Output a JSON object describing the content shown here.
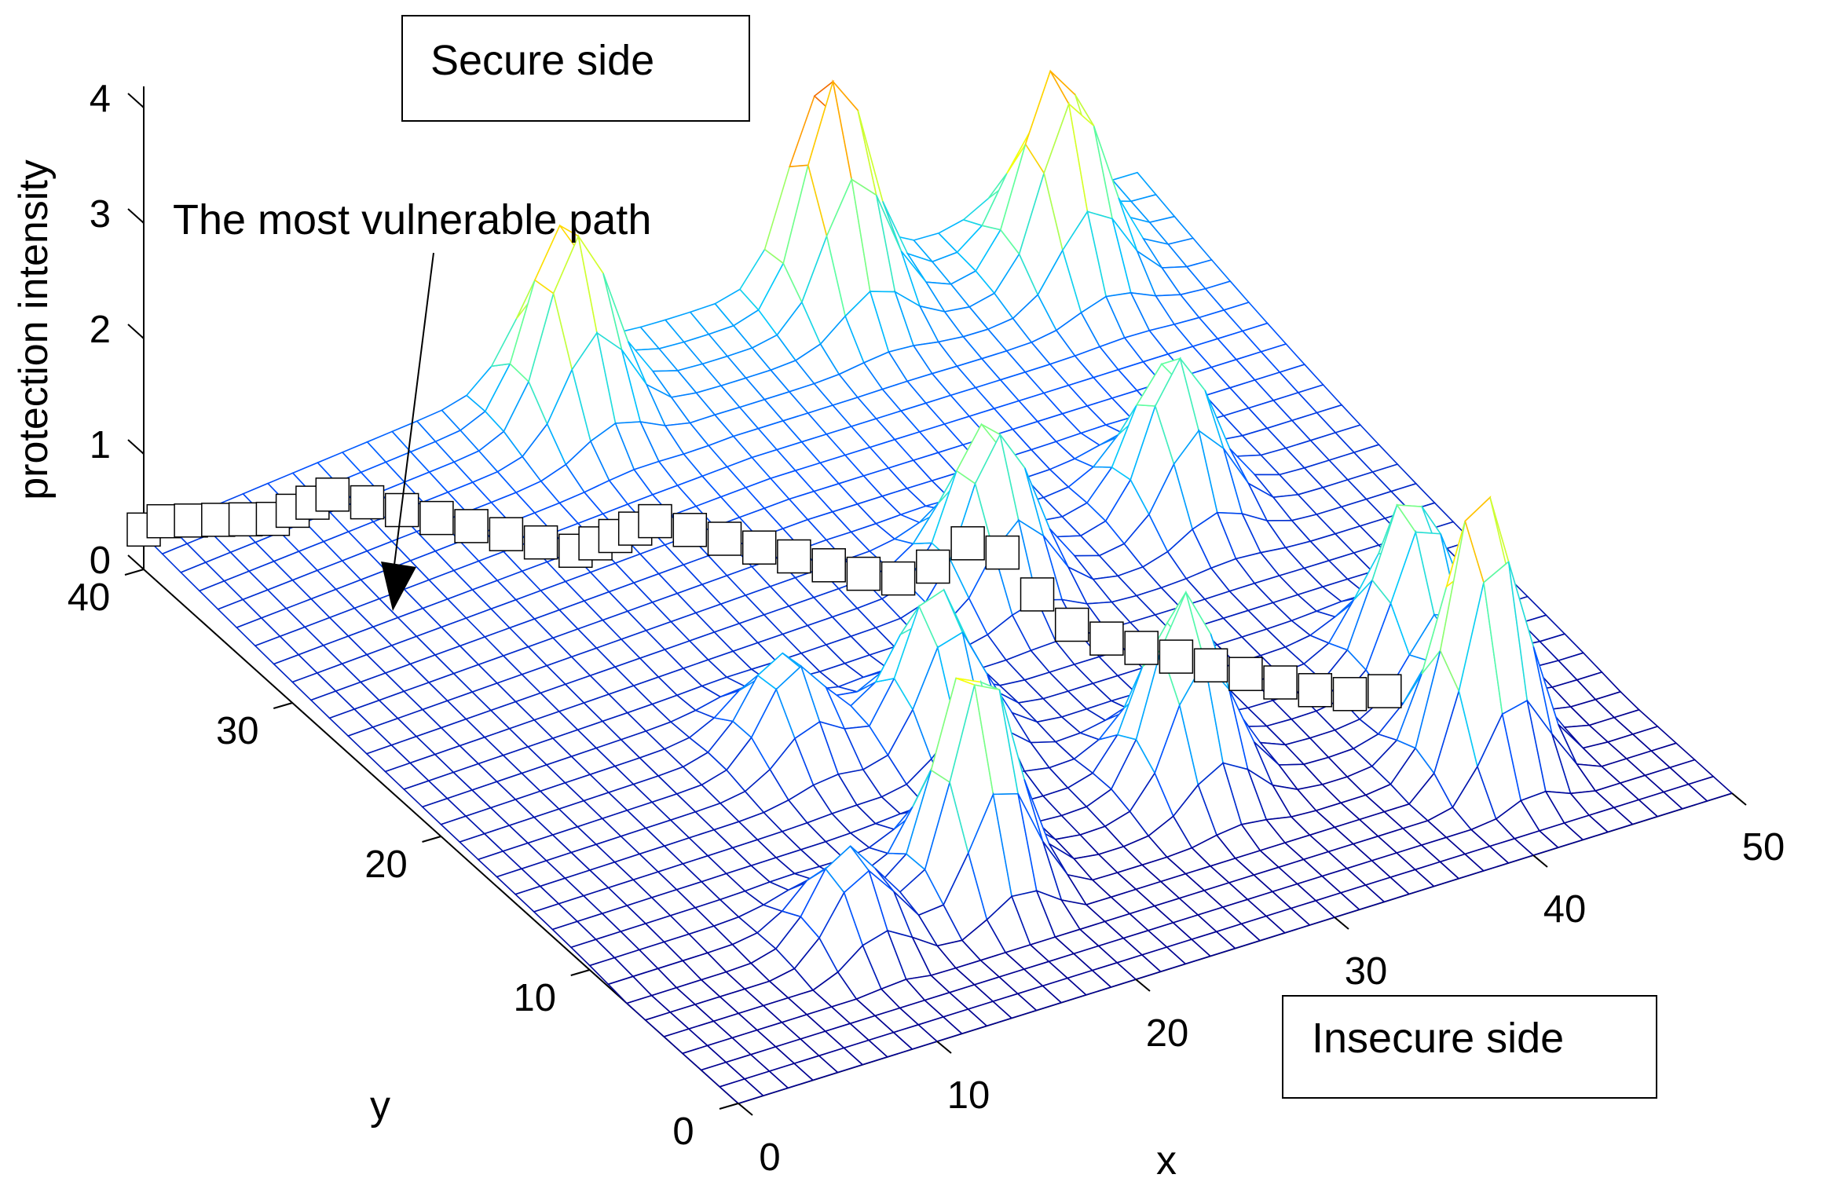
{
  "chart_data": {
    "type": "surface",
    "zlabel": "protection intensity",
    "xlabel": "x",
    "ylabel": "y",
    "xlim": [
      0,
      50
    ],
    "ylim": [
      0,
      40
    ],
    "zlim": [
      0,
      4
    ],
    "x_ticks": [
      "0",
      "10",
      "20",
      "30",
      "40",
      "50"
    ],
    "y_ticks": [
      "0",
      "10",
      "20",
      "30",
      "40"
    ],
    "z_ticks": [
      "0",
      "1",
      "2",
      "3",
      "4"
    ],
    "grid": false,
    "colormap": [
      "#000090",
      "#0050ff",
      "#00c8ff",
      "#60ff9f",
      "#ffff00",
      "#ff9000",
      "#d00000"
    ],
    "annotations": {
      "secure_side": "Secure side",
      "insecure_side": "Insecure side",
      "path_label": "The most vulnerable path"
    },
    "peaks": [
      {
        "x": 20,
        "y": 38,
        "z": 1.6
      },
      {
        "x": 34,
        "y": 39,
        "z": 1.9
      },
      {
        "x": 44,
        "y": 37,
        "z": 1.7
      },
      {
        "x": 30,
        "y": 23,
        "z": 1.4
      },
      {
        "x": 40,
        "y": 24,
        "z": 1.3
      },
      {
        "x": 30,
        "y": 10,
        "z": 1.6
      },
      {
        "x": 42,
        "y": 6,
        "z": 2.4
      },
      {
        "x": 43,
        "y": 12,
        "z": 1.5
      },
      {
        "x": 18,
        "y": 8,
        "z": 2.0
      },
      {
        "x": 22,
        "y": 16,
        "z": 1.3
      },
      {
        "x": 16,
        "y": 18,
        "z": 0.8
      },
      {
        "x": 11,
        "y": 7,
        "z": 0.8
      }
    ],
    "vulnerable_path": [
      [
        0,
        40
      ],
      [
        1,
        40
      ],
      [
        2,
        39.5
      ],
      [
        3,
        39
      ],
      [
        4,
        38.5
      ],
      [
        5,
        38
      ],
      [
        6,
        38
      ],
      [
        7,
        38
      ],
      [
        8,
        38
      ],
      [
        9,
        37
      ],
      [
        10,
        36
      ],
      [
        11,
        35
      ],
      [
        12,
        34
      ],
      [
        13,
        33
      ],
      [
        14,
        32
      ],
      [
        15,
        31
      ],
      [
        16,
        31
      ],
      [
        17,
        31
      ],
      [
        18,
        31
      ],
      [
        19,
        31
      ],
      [
        20,
        30
      ],
      [
        21,
        29
      ],
      [
        22,
        28
      ],
      [
        23,
        27
      ],
      [
        24,
        26
      ],
      [
        25,
        25
      ],
      [
        26,
        24
      ],
      [
        27,
        23
      ],
      [
        28,
        22
      ],
      [
        29,
        21
      ],
      [
        30,
        20
      ],
      [
        31,
        19
      ],
      [
        32,
        18
      ],
      [
        33,
        17
      ],
      [
        34,
        16
      ],
      [
        35,
        15
      ],
      [
        36,
        14
      ],
      [
        37,
        13
      ],
      [
        38,
        12
      ],
      [
        39,
        11
      ],
      [
        40,
        10
      ]
    ]
  }
}
